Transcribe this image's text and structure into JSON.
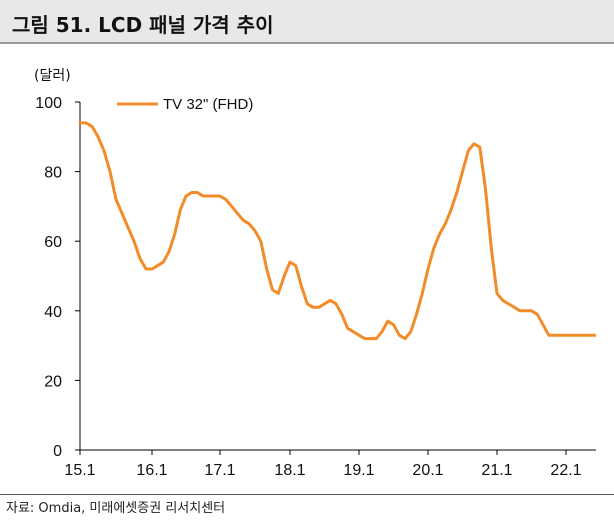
{
  "title": "그림 51. LCD 패널 가격 추이",
  "source": "자료: Omdia, 미래에셋증권 리서치센터",
  "colors": {
    "series": "#F28C28",
    "axis": "#000000",
    "title_bg": "#e8e8e8"
  },
  "chart_data": {
    "type": "line",
    "unit_label": "(달러)",
    "ylim": [
      0,
      100
    ],
    "y_ticks": [
      0,
      20,
      40,
      60,
      80,
      100
    ],
    "x_ticks": [
      "15.1",
      "16.1",
      "17.1",
      "18.1",
      "19.1",
      "20.1",
      "21.1",
      "22.1"
    ],
    "x_tick_values": [
      0,
      12,
      24,
      36,
      48,
      60,
      72,
      84
    ],
    "x_range": [
      0,
      89
    ],
    "legend": "top-left",
    "grid": false,
    "series": [
      {
        "name": "TV 32\" (FHD)",
        "x": [
          0,
          1,
          2,
          3,
          4,
          5,
          6,
          7,
          8,
          9,
          10,
          11,
          12,
          13,
          14,
          15,
          16,
          17,
          18,
          19,
          20,
          21,
          22,
          23,
          24,
          25,
          26,
          27,
          28,
          29,
          30,
          31,
          32,
          33,
          34,
          35,
          36,
          37,
          38,
          39,
          40,
          41,
          42,
          43,
          44,
          45,
          46,
          47,
          48,
          49,
          50,
          51,
          52,
          53,
          54,
          55,
          56,
          57,
          58,
          59,
          60,
          61,
          62,
          63,
          64,
          65,
          66,
          67,
          68,
          69,
          70,
          71,
          72,
          73,
          74,
          75,
          76,
          77,
          78,
          79,
          80,
          81,
          82,
          83,
          84,
          85,
          86,
          87,
          88,
          89
        ],
        "values": [
          94,
          94,
          93,
          90,
          86,
          80,
          72,
          68,
          64,
          60,
          55,
          52,
          52,
          53,
          54,
          57,
          62,
          69,
          73,
          74,
          74,
          73,
          73,
          73,
          73,
          72,
          70,
          68,
          66,
          65,
          63,
          60,
          52,
          46,
          45,
          50,
          54,
          53,
          47,
          42,
          41,
          41,
          42,
          43,
          42,
          39,
          35,
          34,
          33,
          32,
          32,
          32,
          34,
          37,
          36,
          33,
          32,
          34,
          39,
          45,
          52,
          58,
          62,
          65,
          69,
          74,
          80,
          86,
          88,
          87,
          75,
          58,
          45,
          43,
          42,
          41,
          40,
          40,
          40,
          39,
          36,
          33,
          33,
          33,
          33,
          33,
          33,
          33,
          33,
          33
        ]
      }
    ]
  }
}
